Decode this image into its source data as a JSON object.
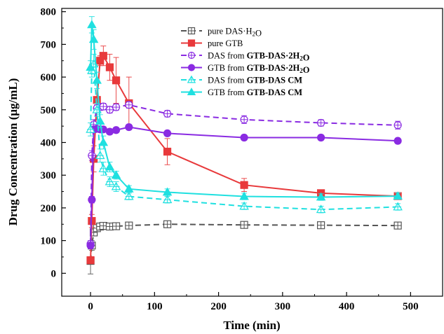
{
  "chart_data": {
    "type": "line",
    "xlabel": "Time (min)",
    "ylabel": "Drug Concentration (μg/mL)",
    "xlim": [
      -45,
      550
    ],
    "ylim": [
      -70,
      810
    ],
    "x_ticks": [
      0,
      100,
      200,
      300,
      400,
      500
    ],
    "y_ticks": [
      0,
      100,
      200,
      300,
      400,
      500,
      600,
      700,
      800
    ],
    "grid": false,
    "legend_position": "top-center",
    "series": [
      {
        "legend_parts": [
          {
            "t": "pure DAS·H",
            "b": false
          },
          {
            "t": "2",
            "b": false,
            "sub": true
          },
          {
            "t": "O",
            "b": false
          }
        ],
        "color": "#555555",
        "dash": "8,5",
        "marker": "square-plus",
        "filled": false,
        "x": [
          0,
          2,
          5,
          10,
          15,
          20,
          30,
          40,
          60,
          120,
          240,
          360,
          480
        ],
        "y": [
          38,
          85,
          125,
          138,
          143,
          145,
          143,
          144,
          146,
          150,
          148,
          147,
          146
        ],
        "err": [
          40,
          15,
          10,
          10,
          8,
          6,
          5,
          5,
          5,
          5,
          5,
          5,
          5
        ]
      },
      {
        "legend_parts": [
          {
            "t": "pure GTB",
            "b": false
          }
        ],
        "color": "#e8393b",
        "dash": "",
        "marker": "square",
        "filled": true,
        "x": [
          0,
          2,
          5,
          10,
          15,
          20,
          30,
          40,
          60,
          120,
          240,
          360,
          480
        ],
        "y": [
          40,
          160,
          350,
          530,
          650,
          665,
          630,
          590,
          520,
          372,
          270,
          245,
          236
        ],
        "err": [
          10,
          20,
          40,
          60,
          15,
          30,
          40,
          70,
          80,
          40,
          20,
          10,
          10
        ]
      },
      {
        "legend_parts": [
          {
            "t": "DAS from ",
            "b": false
          },
          {
            "t": "GTB-DAS·2H",
            "b": true
          },
          {
            "t": "2",
            "b": true,
            "sub": true
          },
          {
            "t": "O",
            "b": true
          }
        ],
        "color": "#8a2be2",
        "dash": "8,5",
        "marker": "circle-plus",
        "filled": false,
        "x": [
          0,
          2,
          5,
          10,
          15,
          20,
          30,
          40,
          60,
          120,
          240,
          360,
          480
        ],
        "y": [
          90,
          360,
          455,
          505,
          508,
          510,
          500,
          508,
          515,
          488,
          470,
          460,
          453
        ],
        "err": [
          10,
          15,
          15,
          10,
          10,
          10,
          10,
          10,
          10,
          10,
          12,
          10,
          12
        ]
      },
      {
        "legend_parts": [
          {
            "t": "GTB from ",
            "b": false
          },
          {
            "t": "GTB-DAS·2H",
            "b": true
          },
          {
            "t": "2",
            "b": true,
            "sub": true
          },
          {
            "t": "O",
            "b": true
          }
        ],
        "color": "#8a2be2",
        "dash": "",
        "marker": "circle",
        "filled": true,
        "x": [
          0,
          2,
          5,
          10,
          15,
          20,
          30,
          40,
          60,
          120,
          240,
          360,
          480
        ],
        "y": [
          85,
          225,
          440,
          442,
          440,
          440,
          433,
          438,
          447,
          428,
          415,
          415,
          405
        ],
        "err": [
          10,
          10,
          10,
          8,
          8,
          8,
          8,
          8,
          8,
          8,
          8,
          8,
          8
        ]
      },
      {
        "legend_parts": [
          {
            "t": "DAS from ",
            "b": false
          },
          {
            "t": "GTB-DAS CM",
            "b": true
          }
        ],
        "color": "#1fe0e0",
        "dash": "8,5",
        "marker": "triangle-plus",
        "filled": false,
        "x": [
          0,
          2,
          5,
          10,
          15,
          20,
          30,
          40,
          60,
          120,
          240,
          360,
          480
        ],
        "y": [
          440,
          620,
          640,
          500,
          360,
          320,
          280,
          265,
          235,
          225,
          205,
          195,
          203
        ],
        "err": [
          20,
          20,
          30,
          20,
          20,
          20,
          15,
          15,
          10,
          10,
          10,
          10,
          10
        ]
      },
      {
        "legend_parts": [
          {
            "t": "GTB from ",
            "b": false
          },
          {
            "t": "GTB-DAS CM",
            "b": true
          }
        ],
        "color": "#1fe0e0",
        "dash": "",
        "marker": "triangle",
        "filled": true,
        "x": [
          0,
          2,
          5,
          10,
          15,
          20,
          30,
          40,
          60,
          120,
          240,
          360,
          480
        ],
        "y": [
          630,
          760,
          715,
          590,
          465,
          400,
          325,
          300,
          258,
          248,
          235,
          233,
          236
        ],
        "err": [
          20,
          25,
          30,
          25,
          20,
          20,
          15,
          12,
          10,
          10,
          10,
          10,
          10
        ]
      }
    ]
  }
}
